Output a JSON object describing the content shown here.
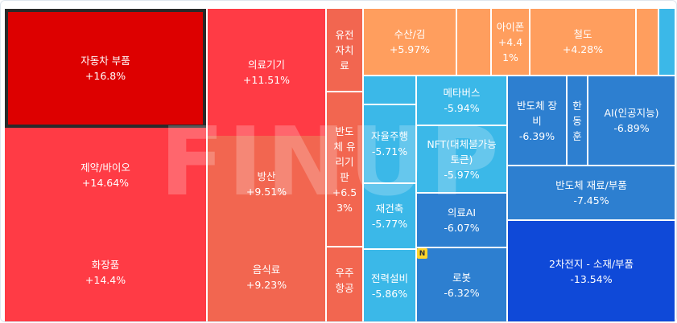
{
  "chart_data": {
    "type": "treemap",
    "unit": "%",
    "watermark": "FINUP",
    "badge": "N",
    "tiles": [
      {
        "label": "자동차 부품",
        "change": "+16.8%",
        "value": 16.8,
        "color": "#dd0000"
      },
      {
        "label": "제약/바이오",
        "change": "+14.64%",
        "value": 14.64,
        "color": "#ff3b45"
      },
      {
        "label": "화장품",
        "change": "+14.4%",
        "value": 14.4,
        "color": "#ff3b45"
      },
      {
        "label": "의료기기",
        "change": "+11.51%",
        "value": 11.51,
        "color": "#ff3b45"
      },
      {
        "label": "방산",
        "change": "+9.51%",
        "value": 9.51,
        "color": "#f26650"
      },
      {
        "label": "음식료",
        "change": "+9.23%",
        "value": 9.23,
        "color": "#f26650"
      },
      {
        "label": "유전\n자치\n료",
        "change": "",
        "value": null,
        "color": "#f26650"
      },
      {
        "label": "반도\n체 유\n리기\n판",
        "change": "+6.5\n3%",
        "value": 6.53,
        "color": "#f26650"
      },
      {
        "label": "우주\n항공",
        "change": "",
        "value": null,
        "color": "#f26650"
      },
      {
        "label": "수산/김",
        "change": "+5.97%",
        "value": 5.97,
        "color": "#ff9e5e"
      },
      {
        "label": "아이폰",
        "change": "+4.4\n1%",
        "value": 4.41,
        "color": "#ff9e5e"
      },
      {
        "label": "철도",
        "change": "+4.28%",
        "value": 4.28,
        "color": "#ff9e5e"
      },
      {
        "label": "메타버스",
        "change": "-5.94%",
        "value": -5.94,
        "color": "#3bb8e8"
      },
      {
        "label": "자율주행",
        "change": "-5.71%",
        "value": -5.71,
        "color": "#3bb8e8"
      },
      {
        "label": "NFT(대체불가능\n토큰)",
        "change": "-5.97%",
        "value": -5.97,
        "color": "#3bb8e8"
      },
      {
        "label": "재건축",
        "change": "-5.77%",
        "value": -5.77,
        "color": "#3bb8e8"
      },
      {
        "label": "의료AI",
        "change": "-6.07%",
        "value": -6.07,
        "color": "#2d7fd0"
      },
      {
        "label": "전력설비",
        "change": "-5.86%",
        "value": -5.86,
        "color": "#3bb8e8"
      },
      {
        "label": "로봇",
        "change": "-6.32%",
        "value": -6.32,
        "color": "#2d7fd0"
      },
      {
        "label": "반도체 장\n비",
        "change": "-6.39%",
        "value": -6.39,
        "color": "#2d7fd0"
      },
      {
        "label": "한\n동\n훈",
        "change": "",
        "value": null,
        "color": "#2d7fd0"
      },
      {
        "label": "AI(인공지능)",
        "change": "-6.89%",
        "value": -6.89,
        "color": "#2d7fd0"
      },
      {
        "label": "반도체 재료/부품",
        "change": "-7.45%",
        "value": -7.45,
        "color": "#2d7fd0"
      },
      {
        "label": "2차전지 - 소재/부품",
        "change": "-13.54%",
        "value": -13.54,
        "color": "#0f49d8"
      },
      {
        "label": "",
        "change": "",
        "value": null,
        "color": "#ff9e5e"
      },
      {
        "label": "",
        "change": "",
        "value": null,
        "color": "#ff9e5e"
      },
      {
        "label": "",
        "change": "",
        "value": null,
        "color": "#3bb8e8"
      },
      {
        "label": "",
        "change": "",
        "value": null,
        "color": "#3bb8e8"
      },
      {
        "label": "",
        "change": "",
        "value": null,
        "color": "#3bb8e8"
      },
      {
        "label": "",
        "change": "",
        "value": null,
        "color": "#3bb8e8"
      },
      {
        "label": "",
        "change": "",
        "value": null,
        "color": "#3bb8e8"
      },
      {
        "label": "",
        "change": "",
        "value": null,
        "color": "#f26650"
      },
      {
        "label": "",
        "change": "",
        "value": null,
        "color": "#f26650"
      },
      {
        "label": "",
        "change": "",
        "value": null,
        "color": "#f26650"
      }
    ]
  }
}
